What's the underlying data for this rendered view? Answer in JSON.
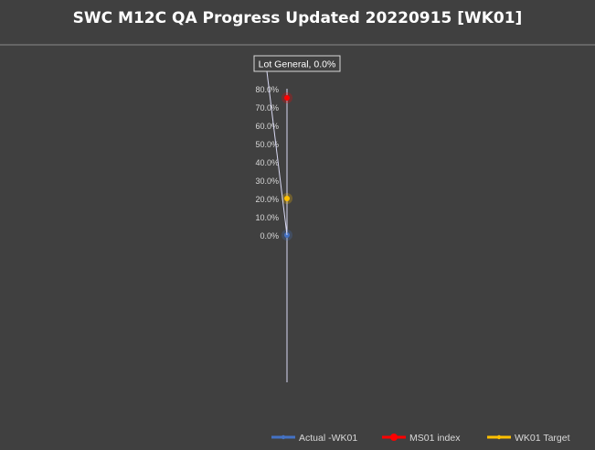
{
  "chart_data": {
    "type": "radar",
    "title": "SWC M12C QA Progress Updated 20220915 [WK01]",
    "categories": [
      "Lot General"
    ],
    "ticks": [
      "0.0%",
      "10.0%",
      "20.0%",
      "30.0%",
      "40.0%",
      "50.0%",
      "60.0%",
      "70.0%",
      "80.0%"
    ],
    "ylim": [
      0,
      80
    ],
    "series": [
      {
        "name": "Actual -WK01",
        "values": [
          0.0
        ],
        "color": "#4472C4"
      },
      {
        "name": "MS01 index",
        "values": [
          75.0
        ],
        "color": "#FF0000"
      },
      {
        "name": "WK01 Target",
        "values": [
          20.0
        ],
        "color": "#FFC000"
      }
    ],
    "data_label": "Lot General, 0.0%",
    "legend_position": "bottom-right"
  },
  "colors": {
    "background": "#404040",
    "axis": "#D9D9F3",
    "text": "#FFFFFF"
  }
}
